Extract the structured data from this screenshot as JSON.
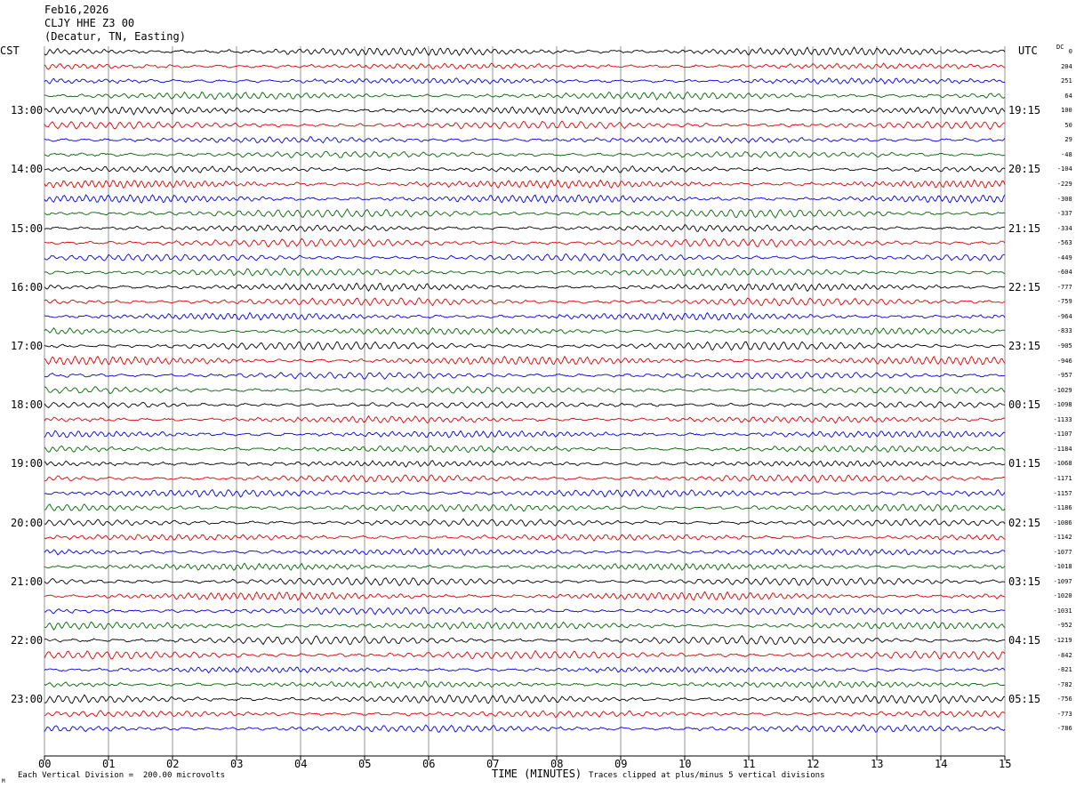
{
  "header": {
    "date": "Feb16,2026",
    "station": "CLJY HHE Z3 00",
    "location": "(Decatur, TN, Easting)"
  },
  "left_zone": "CST",
  "right_zone": "UTC",
  "dc_label": "DC",
  "footer": {
    "scale_note": "Each Vertical Division =  200.00 microvolts",
    "xlabel": "TIME (MINUTES)",
    "clip_note": "Traces clipped at plus/minus 5 vertical divisions",
    "corner_mark": "M"
  },
  "colors": [
    "#000000",
    "#dd0000",
    "#0000dd",
    "#006600"
  ],
  "chart_data": {
    "type": "line",
    "title": "CLJY HHE Z3 00",
    "xlabel": "TIME (MINUTES)",
    "xlim": [
      0,
      15
    ],
    "x_ticks": [
      "00",
      "01",
      "02",
      "03",
      "04",
      "05",
      "06",
      "07",
      "08",
      "09",
      "10",
      "11",
      "12",
      "13",
      "14",
      "15"
    ],
    "left_hour_labels": [
      "13:00",
      "14:00",
      "15:00",
      "16:00",
      "17:00",
      "18:00",
      "19:00",
      "20:00",
      "21:00",
      "22:00",
      "23:00"
    ],
    "right_hour_labels": [
      "19:15",
      "20:15",
      "21:15",
      "22:15",
      "23:15",
      "00:15",
      "01:15",
      "02:15",
      "03:15",
      "04:15",
      "05:15"
    ],
    "dc_offsets": [
      0,
      204,
      251,
      64,
      100,
      50,
      29,
      -48,
      -104,
      -229,
      -308,
      -337,
      -334,
      -563,
      -449,
      -604,
      -777,
      -759,
      -964,
      -833,
      -905,
      -946,
      -957,
      -1029,
      -1098,
      -1133,
      -1107,
      -1184,
      -1068,
      -1171,
      -1157,
      -1186,
      -1086,
      -1142,
      -1077,
      -1018,
      -1097,
      -1020,
      -1031,
      -952,
      -1219,
      -842,
      -821,
      -782,
      -756,
      -773,
      -786
    ],
    "grid": true
  }
}
